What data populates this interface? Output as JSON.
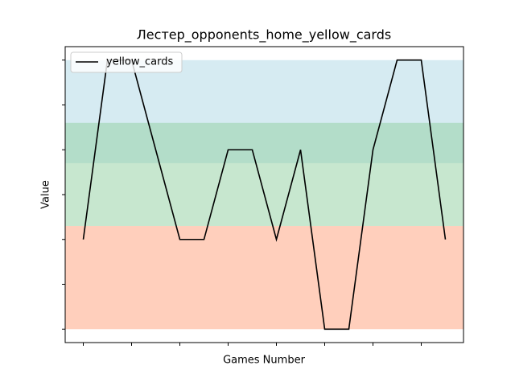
{
  "chart_data": {
    "type": "line",
    "title": "Лестер_opponents_home_yellow_cards",
    "xlabel": "Games Number",
    "ylabel": "Value",
    "x": [
      0,
      1,
      2,
      3,
      4,
      5,
      6,
      7,
      8,
      9,
      10,
      11,
      12,
      13,
      14,
      15
    ],
    "series": [
      {
        "name": "yellow_cards",
        "color": "#000000",
        "values": [
          2,
          6,
          6,
          4,
          2,
          2,
          4,
          4,
          2,
          4,
          0,
          0,
          4,
          6,
          6,
          2
        ]
      }
    ],
    "xlim": [
      -0.75,
      15.75
    ],
    "xticks": [
      0,
      2,
      4,
      6,
      8,
      10,
      12,
      14
    ],
    "ylim": [
      -0.3,
      6.3
    ],
    "yticks": [
      0,
      1,
      2,
      3,
      4,
      5,
      6
    ],
    "bands": [
      {
        "range": [
          3.7,
          6
        ],
        "color": "#add8e6"
      },
      {
        "range": [
          2.3,
          4.6
        ],
        "color": "#90d0a0"
      },
      {
        "range": [
          0,
          2.3
        ],
        "color": "#ffa07a"
      }
    ],
    "legend": "upper left"
  }
}
